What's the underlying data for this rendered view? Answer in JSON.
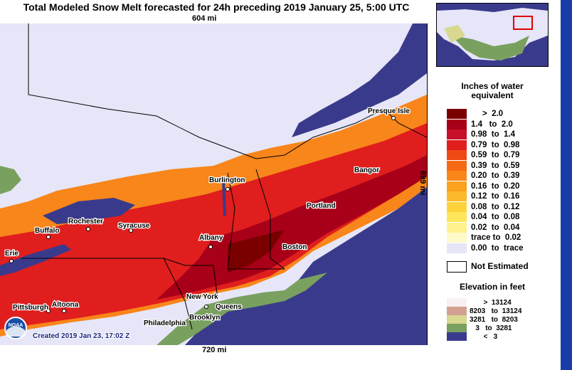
{
  "title": "Total Modeled Snow Melt forecasted for 24h preceding 2019 January 25, 5:00 UTC",
  "distances": {
    "top": "604 mi",
    "bottom": "720 mi",
    "right": "699 mi"
  },
  "legend": {
    "title_line1": "Inches of water",
    "title_line2": "equivalent",
    "rows": [
      {
        "label": "     >  2.0",
        "color": "#7a0000"
      },
      {
        "label": "1.4   to  2.0",
        "color": "#a80018"
      },
      {
        "label": "0.98  to  1.4",
        "color": "#c8102a"
      },
      {
        "label": "0.79  to  0.98",
        "color": "#e01e1e"
      },
      {
        "label": "0.59  to  0.79",
        "color": "#f04a14"
      },
      {
        "label": "0.39  to  0.59",
        "color": "#f56a12"
      },
      {
        "label": "0.20  to  0.39",
        "color": "#f8861a"
      },
      {
        "label": "0.16  to  0.20",
        "color": "#fba21f"
      },
      {
        "label": "0.12  to  0.16",
        "color": "#fcb92a"
      },
      {
        "label": "0.08  to  0.12",
        "color": "#fdd23a"
      },
      {
        "label": "0.04  to  0.08",
        "color": "#fde65a"
      },
      {
        "label": "0.02  to  0.04",
        "color": "#fef18e"
      },
      {
        "label": "trace to  0.02",
        "color": "#fffbc8"
      },
      {
        "label": "0.00  to  trace",
        "color": "#e6e6f8"
      }
    ],
    "not_estimated": "Not Estimated",
    "elevation_title": "Elevation in feet",
    "elevation_rows": [
      {
        "label": "       >  13124",
        "color": "#f8f0f4"
      },
      {
        "label": "8203   to  13124",
        "color": "#d2a090"
      },
      {
        "label": "3281   to  8203",
        "color": "#d8d890"
      },
      {
        "label": "   3   to  3281",
        "color": "#7aa060"
      },
      {
        "label": "       <   3",
        "color": "#3a3a8c"
      }
    ]
  },
  "cities": {
    "presque_isle": "Presque Isle",
    "bangor": "Bangor",
    "burlington": "Burlington",
    "portland": "Portland",
    "rochester": "Rochester",
    "syracuse": "Syracuse",
    "buffalo": "Buffalo",
    "albany": "Albany",
    "boston": "Boston",
    "erie": "Erie",
    "new_york": "New York",
    "queens": "Queens",
    "pittsburgh": "Pittsburgh",
    "altoona": "Altoona",
    "brooklyn": "Brooklyn",
    "philadelphia": "Philadelphia"
  },
  "created": "Created 2019 Jan 23, 17:02 Z",
  "logo": "NOAA",
  "colors": {
    "snow_free": "#e6e6f8",
    "ocean": "#3a3a8c",
    "land_low": "#7aa060"
  }
}
